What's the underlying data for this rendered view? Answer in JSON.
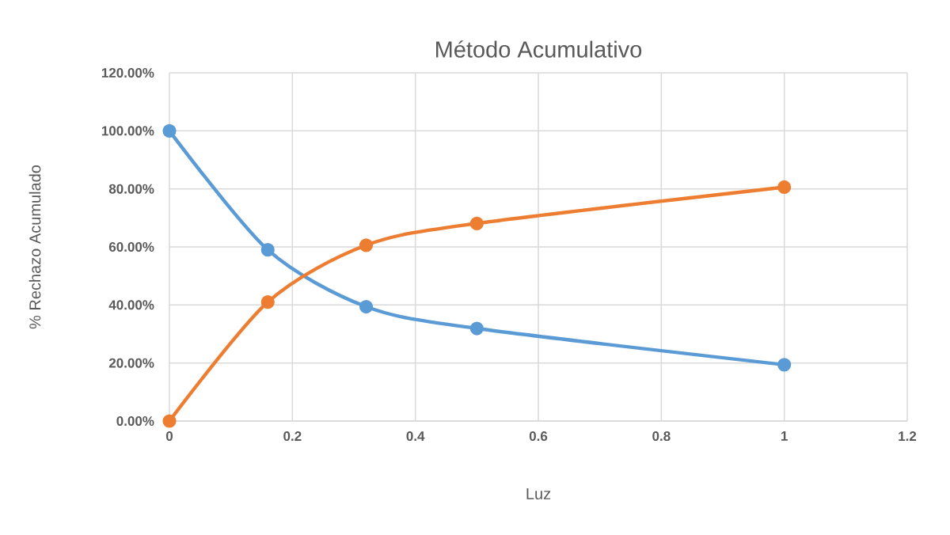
{
  "chart_data": {
    "type": "line",
    "title": "Método Acumulativo",
    "xlabel": "Luz",
    "ylabel": "% Rechazo Acumulado",
    "x": [
      0,
      0.16,
      0.32,
      0.5,
      1
    ],
    "series": [
      {
        "color": "#5b9bd5",
        "values": [
          100,
          59,
          39.4,
          31.9,
          19.4
        ]
      },
      {
        "color": "#ed7d31",
        "values": [
          0,
          41,
          60.6,
          68.1,
          80.6
        ]
      }
    ],
    "xlim": [
      0,
      1.2
    ],
    "xticks": [
      0,
      0.2,
      0.4,
      0.6,
      0.8,
      1,
      1.2
    ],
    "ylim": [
      0,
      120
    ],
    "yticks": [
      {
        "value": 0,
        "label": "0.00%"
      },
      {
        "value": 20,
        "label": "20.00%"
      },
      {
        "value": 40,
        "label": "40.00%"
      },
      {
        "value": 60,
        "label": "60.00%"
      },
      {
        "value": 80,
        "label": "80.00%"
      },
      {
        "value": 100,
        "label": "100.00%"
      },
      {
        "value": 120,
        "label": "120.00%"
      }
    ],
    "grid": true,
    "marker": "circle"
  }
}
